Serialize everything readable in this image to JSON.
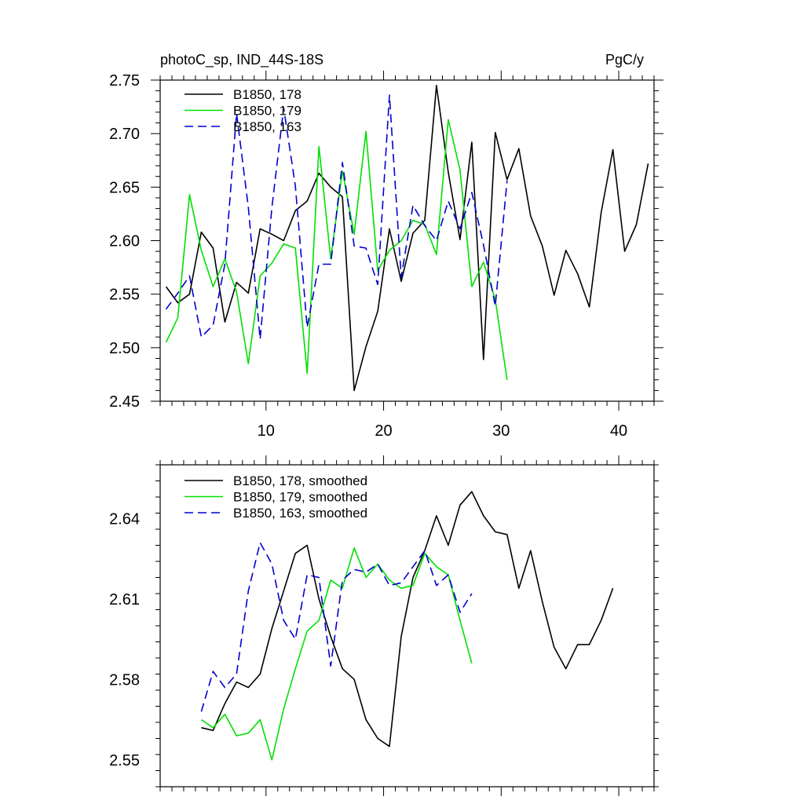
{
  "chart_data": [
    {
      "type": "line",
      "title": "photoC_sp, IND_44S-18S",
      "units": "PgC/y",
      "xlabel": "",
      "ylabel": "",
      "xlim": [
        1,
        43
      ],
      "ylim": [
        2.45,
        2.75
      ],
      "xticks": [
        10,
        20,
        30,
        40
      ],
      "yticks": [
        2.45,
        2.5,
        2.55,
        2.6,
        2.65,
        2.7,
        2.75
      ],
      "ytick_labels": [
        "2.45",
        "2.50",
        "2.55",
        "2.60",
        "2.65",
        "2.70",
        "2.75"
      ],
      "legend_position": "top-left",
      "series": [
        {
          "name": "B1850, 178",
          "color": "#000000",
          "dash": "solid",
          "x": [
            1.5,
            2.5,
            3.5,
            4.5,
            5.5,
            6.5,
            7.5,
            8.5,
            9.5,
            10.5,
            11.5,
            12.5,
            13.5,
            14.5,
            15.5,
            16.5,
            17.5,
            18.5,
            19.5,
            20.5,
            21.5,
            22.5,
            23.5,
            24.5,
            25.5,
            26.5,
            27.5,
            28.5,
            29.5,
            30.5,
            31.5,
            32.5,
            33.5,
            34.5,
            35.5,
            36.5,
            37.5,
            38.5,
            39.5,
            40.5,
            41.5,
            42.5
          ],
          "values": [
            2.557,
            2.542,
            2.55,
            2.608,
            2.593,
            2.524,
            2.561,
            2.551,
            2.611,
            2.606,
            2.6,
            2.628,
            2.637,
            2.663,
            2.65,
            2.641,
            2.46,
            2.501,
            2.534,
            2.611,
            2.562,
            2.607,
            2.619,
            2.745,
            2.664,
            2.601,
            2.692,
            2.489,
            2.701,
            2.657,
            2.686,
            2.623,
            2.595,
            2.549,
            2.591,
            2.569,
            2.538,
            2.626,
            2.685,
            2.59,
            2.615,
            2.672
          ]
        },
        {
          "name": "B1850, 179",
          "color": "#00e000",
          "dash": "solid",
          "x": [
            1.5,
            2.5,
            3.5,
            4.5,
            5.5,
            6.5,
            7.5,
            8.5,
            9.5,
            10.5,
            11.5,
            12.5,
            13.5,
            14.5,
            15.5,
            16.5,
            17.5,
            18.5,
            19.5,
            20.5,
            21.5,
            22.5,
            23.5,
            24.5,
            25.5,
            26.5,
            27.5,
            28.5,
            29.5,
            30.5
          ],
          "values": [
            2.505,
            2.528,
            2.643,
            2.591,
            2.557,
            2.583,
            2.552,
            2.485,
            2.567,
            2.579,
            2.597,
            2.593,
            2.476,
            2.688,
            2.583,
            2.665,
            2.606,
            2.702,
            2.572,
            2.591,
            2.6,
            2.619,
            2.615,
            2.587,
            2.713,
            2.666,
            2.557,
            2.58,
            2.545,
            2.47
          ]
        },
        {
          "name": "B1850, 163",
          "color": "#0000d0",
          "dash": "dashed",
          "x": [
            1.5,
            2.5,
            3.5,
            4.5,
            5.5,
            6.5,
            7.5,
            8.5,
            9.5,
            10.5,
            11.5,
            12.5,
            13.5,
            14.5,
            15.5,
            16.5,
            17.5,
            18.5,
            19.5,
            20.5,
            21.5,
            22.5,
            23.5,
            24.5,
            25.5,
            26.5,
            27.5,
            28.5,
            29.5,
            30.5
          ],
          "values": [
            2.536,
            2.551,
            2.567,
            2.51,
            2.521,
            2.578,
            2.719,
            2.631,
            2.508,
            2.631,
            2.724,
            2.651,
            2.519,
            2.578,
            2.578,
            2.673,
            2.595,
            2.593,
            2.559,
            2.736,
            2.566,
            2.633,
            2.614,
            2.6,
            2.637,
            2.611,
            2.645,
            2.596,
            2.539,
            2.656
          ]
        }
      ]
    },
    {
      "type": "line",
      "title": "",
      "xlabel": "",
      "ylabel": "",
      "xlim": [
        1,
        43
      ],
      "ylim": [
        2.54,
        2.66
      ],
      "xticks": [
        10,
        20,
        30,
        40
      ],
      "yticks": [
        2.55,
        2.58,
        2.61,
        2.64
      ],
      "ytick_labels": [
        "2.55",
        "2.58",
        "2.61",
        "2.64"
      ],
      "legend_position": "top-left",
      "series": [
        {
          "name": "B1850, 178, smoothed",
          "color": "#000000",
          "dash": "solid",
          "x": [
            4.5,
            5.5,
            6.5,
            7.5,
            8.5,
            9.5,
            10.5,
            11.5,
            12.5,
            13.5,
            14.5,
            15.5,
            16.5,
            17.5,
            18.5,
            19.5,
            20.5,
            21.5,
            22.5,
            23.5,
            24.5,
            25.5,
            26.5,
            27.5,
            28.5,
            29.5,
            30.5,
            31.5,
            32.5,
            33.5,
            34.5,
            35.5,
            36.5,
            37.5,
            38.5,
            39.5
          ],
          "values": [
            2.562,
            2.561,
            2.571,
            2.579,
            2.577,
            2.582,
            2.599,
            2.613,
            2.627,
            2.63,
            2.61,
            2.596,
            2.584,
            2.58,
            2.565,
            2.558,
            2.555,
            2.596,
            2.618,
            2.628,
            2.641,
            2.63,
            2.645,
            2.65,
            2.641,
            2.635,
            2.634,
            2.614,
            2.628,
            2.609,
            2.592,
            2.584,
            2.593,
            2.593,
            2.602,
            2.614
          ]
        },
        {
          "name": "B1850, 179, smoothed",
          "color": "#00e000",
          "dash": "solid",
          "x": [
            4.5,
            5.5,
            6.5,
            7.5,
            8.5,
            9.5,
            10.5,
            11.5,
            12.5,
            13.5,
            14.5,
            15.5,
            16.5,
            17.5,
            18.5,
            19.5,
            20.5,
            21.5,
            22.5,
            23.5,
            24.5,
            25.5,
            26.5,
            27.5
          ],
          "values": [
            2.565,
            2.562,
            2.567,
            2.559,
            2.56,
            2.565,
            2.55,
            2.569,
            2.584,
            2.598,
            2.602,
            2.617,
            2.614,
            2.629,
            2.618,
            2.623,
            2.617,
            2.614,
            2.615,
            2.627,
            2.622,
            2.619,
            2.602,
            2.586
          ]
        },
        {
          "name": "B1850, 163, smoothed",
          "color": "#0000d0",
          "dash": "dashed",
          "x": [
            4.5,
            5.5,
            6.5,
            7.5,
            8.5,
            9.5,
            10.5,
            11.5,
            12.5,
            13.5,
            14.5,
            15.5,
            16.5,
            17.5,
            18.5,
            19.5,
            20.5,
            21.5,
            22.5,
            23.5,
            24.5,
            25.5,
            26.5,
            27.5
          ],
          "values": [
            2.568,
            2.583,
            2.577,
            2.582,
            2.613,
            2.631,
            2.623,
            2.602,
            2.595,
            2.619,
            2.618,
            2.585,
            2.617,
            2.621,
            2.62,
            2.623,
            2.615,
            2.616,
            2.622,
            2.628,
            2.615,
            2.619,
            2.605,
            2.612
          ]
        }
      ]
    }
  ]
}
